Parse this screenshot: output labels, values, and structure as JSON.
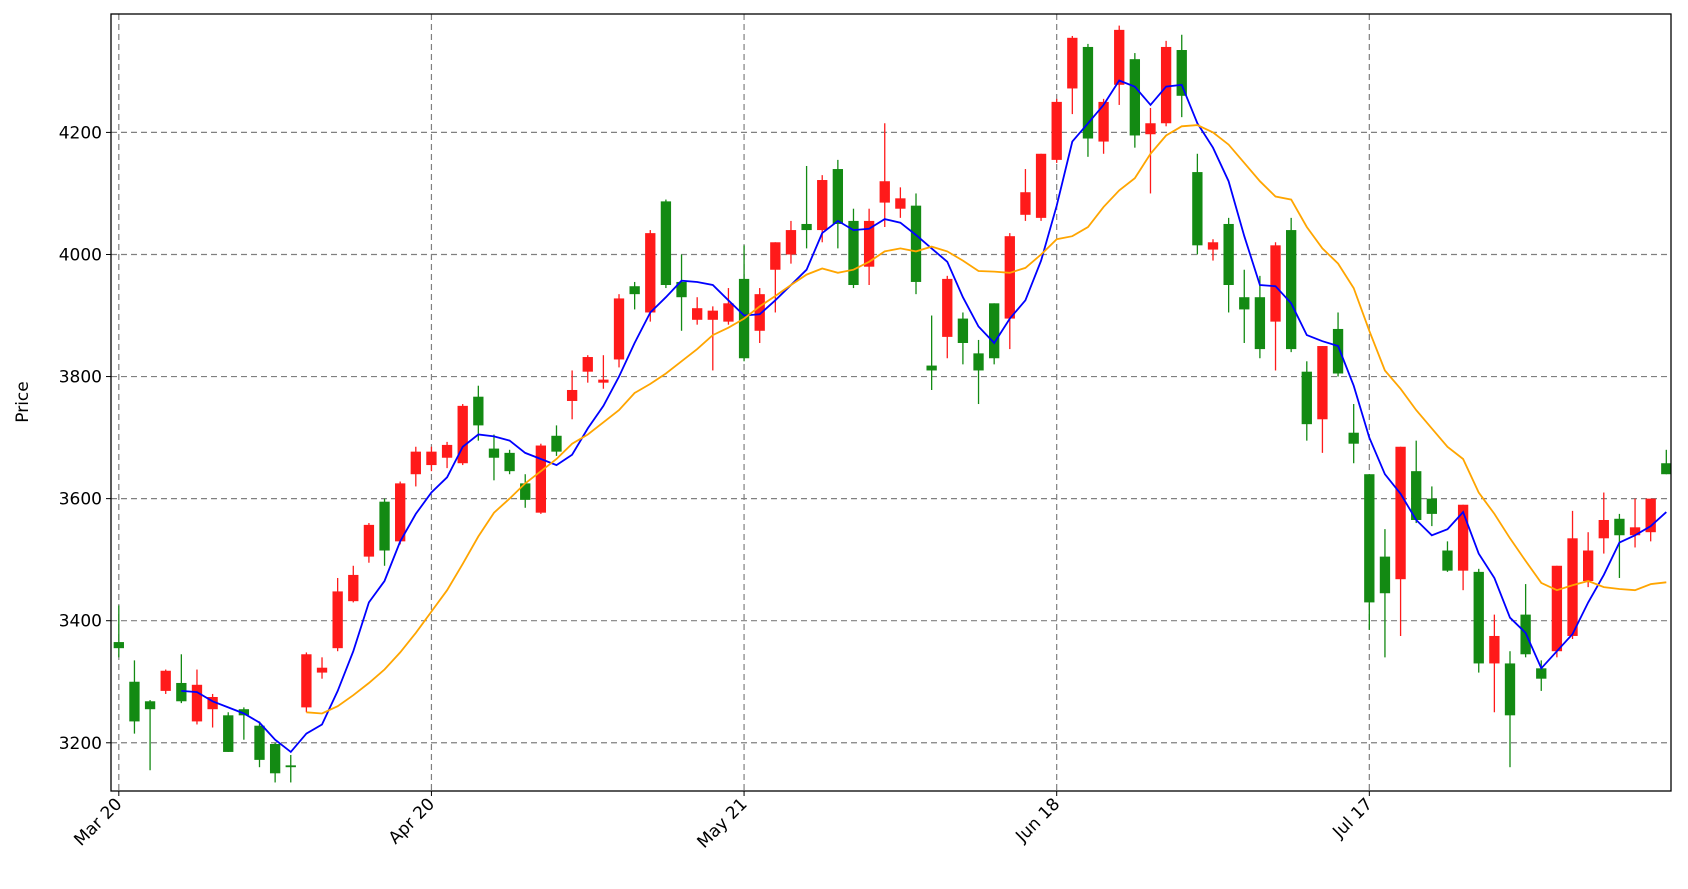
{
  "chart_data": {
    "type": "candlestick",
    "y_label": "Price",
    "categories": [
      "Mar 20",
      null,
      null,
      null,
      null,
      null,
      null,
      null,
      null,
      null,
      null,
      null,
      null,
      null,
      null,
      null,
      null,
      null,
      null,
      null,
      "Apr 20",
      null,
      null,
      null,
      null,
      null,
      null,
      null,
      null,
      null,
      null,
      null,
      null,
      null,
      null,
      null,
      null,
      null,
      null,
      null,
      "May 21",
      null,
      null,
      null,
      null,
      null,
      null,
      null,
      null,
      null,
      null,
      null,
      null,
      null,
      null,
      null,
      null,
      null,
      null,
      null,
      "Jun 18",
      null,
      null,
      null,
      null,
      null,
      null,
      null,
      null,
      null,
      null,
      null,
      null,
      null,
      null,
      null,
      null,
      null,
      null,
      null,
      "Jul 17",
      null,
      null,
      null,
      null,
      null,
      null,
      null,
      null,
      null,
      null,
      null,
      null,
      null,
      null,
      null,
      null,
      null,
      null,
      null
    ],
    "open": [
      3365,
      3300,
      3268,
      3285,
      3298,
      3235,
      3255,
      3245,
      3255,
      3228,
      3198,
      3163,
      3258,
      3315,
      3355,
      3432,
      3505,
      3595,
      3530,
      3640,
      3655,
      3667,
      3658,
      3767,
      3682,
      3675,
      3625,
      3577,
      3703,
      3760,
      3808,
      3790,
      3828,
      3948,
      3905,
      4087,
      3955,
      3893,
      3893,
      3890,
      3960,
      3875,
      3975,
      4000,
      4050,
      4040,
      4140,
      4055,
      3980,
      4085,
      4075,
      4080,
      3818,
      3865,
      3895,
      3838,
      3920,
      3895,
      4065,
      4060,
      4155,
      4272,
      4340,
      4185,
      4278,
      4320,
      4197,
      4215,
      4335,
      4135,
      4008,
      4050,
      3930,
      3930,
      3890,
      4040,
      3808,
      3730,
      3878,
      3708,
      3640,
      3505,
      3468,
      3645,
      3600,
      3515,
      3482,
      3480,
      3330,
      3330,
      3410,
      3322,
      3350,
      3375,
      3465,
      3535,
      3567,
      3540,
      3545,
      3658
    ],
    "high": [
      3425,
      3335,
      3270,
      3320,
      3345,
      3320,
      3280,
      3250,
      3258,
      3235,
      3200,
      3180,
      3348,
      3340,
      3470,
      3490,
      3560,
      3600,
      3628,
      3685,
      3685,
      3693,
      3755,
      3785,
      3705,
      3680,
      3640,
      3690,
      3720,
      3810,
      3835,
      3835,
      3935,
      3955,
      4040,
      4090,
      4000,
      3930,
      3915,
      3945,
      4015,
      3945,
      4020,
      4055,
      4145,
      4130,
      4155,
      4075,
      4075,
      4215,
      4110,
      4100,
      3900,
      3965,
      3905,
      3860,
      3920,
      4035,
      4140,
      4165,
      4255,
      4358,
      4345,
      4255,
      4375,
      4330,
      4240,
      4350,
      4360,
      4165,
      4025,
      4060,
      3975,
      3965,
      4020,
      4060,
      3825,
      3850,
      3905,
      3755,
      3640,
      3550,
      3685,
      3695,
      3620,
      3530,
      3590,
      3485,
      3410,
      3350,
      3460,
      3335,
      3490,
      3580,
      3545,
      3610,
      3575,
      3600,
      3600,
      3680
    ],
    "low": [
      3340,
      3215,
      3155,
      3280,
      3265,
      3230,
      3225,
      3185,
      3205,
      3160,
      3135,
      3135,
      3250,
      3305,
      3350,
      3430,
      3495,
      3490,
      3525,
      3620,
      3645,
      3650,
      3655,
      3695,
      3630,
      3640,
      3585,
      3575,
      3670,
      3730,
      3790,
      3780,
      3815,
      3910,
      3890,
      3945,
      3875,
      3885,
      3810,
      3885,
      3825,
      3855,
      3905,
      3985,
      4010,
      4020,
      4010,
      3945,
      3950,
      4045,
      4060,
      3935,
      3778,
      3830,
      3820,
      3755,
      3820,
      3845,
      4055,
      4055,
      4150,
      4230,
      4160,
      4165,
      4245,
      4175,
      4100,
      4210,
      4225,
      4000,
      3990,
      3905,
      3855,
      3830,
      3810,
      3840,
      3695,
      3675,
      3800,
      3658,
      3385,
      3340,
      3375,
      3560,
      3555,
      3480,
      3450,
      3315,
      3250,
      3160,
      3340,
      3285,
      3340,
      3370,
      3455,
      3510,
      3470,
      3520,
      3530,
      3640
    ],
    "close": [
      3355,
      3235,
      3255,
      3318,
      3268,
      3295,
      3275,
      3185,
      3245,
      3172,
      3150,
      3160,
      3345,
      3323,
      3448,
      3475,
      3557,
      3515,
      3625,
      3677,
      3677,
      3688,
      3752,
      3720,
      3667,
      3645,
      3598,
      3687,
      3677,
      3778,
      3832,
      3795,
      3928,
      3935,
      4035,
      3950,
      3930,
      3912,
      3908,
      3920,
      3830,
      3935,
      4020,
      4040,
      4040,
      4122,
      4050,
      3950,
      4055,
      4120,
      4092,
      3955,
      3810,
      3960,
      3855,
      3810,
      3830,
      4030,
      4102,
      4165,
      4250,
      4355,
      4190,
      4250,
      4368,
      4195,
      4215,
      4340,
      4260,
      4015,
      4020,
      3950,
      3910,
      3845,
      4015,
      3845,
      3722,
      3850,
      3805,
      3690,
      3430,
      3445,
      3685,
      3565,
      3575,
      3482,
      3590,
      3330,
      3375,
      3245,
      3345,
      3305,
      3490,
      3535,
      3515,
      3565,
      3540,
      3553,
      3600,
      3640
    ],
    "up_color": "#ff1a1a",
    "down_color": "#138a13",
    "ma_lines": [
      {
        "color": "#0000ff",
        "values": [
          null,
          null,
          null,
          null,
          3285,
          3283,
          3268,
          3258,
          3248,
          3233,
          3205,
          3185,
          3215,
          3230,
          3285,
          3350,
          3430,
          3465,
          3530,
          3575,
          3610,
          3635,
          3685,
          3705,
          3702,
          3695,
          3675,
          3665,
          3655,
          3672,
          3715,
          3752,
          3800,
          3855,
          3905,
          3930,
          3957,
          3955,
          3950,
          3925,
          3900,
          3902,
          3925,
          3950,
          3975,
          4035,
          4055,
          4040,
          4042,
          4058,
          4052,
          4032,
          4010,
          3988,
          3930,
          3882,
          3855,
          3895,
          3925,
          3990,
          4080,
          4185,
          4215,
          4245,
          4285,
          4275,
          4245,
          4275,
          4278,
          4215,
          4175,
          4120,
          4030,
          3950,
          3948,
          3920,
          3868,
          3858,
          3850,
          3785,
          3700,
          3640,
          3608,
          3565,
          3540,
          3550,
          3578,
          3510,
          3470,
          3405,
          3380,
          3322,
          3350,
          3378,
          3430,
          3475,
          3528,
          3540,
          3555,
          3578
        ]
      },
      {
        "color": "#ffa500",
        "values": [
          null,
          null,
          null,
          null,
          null,
          null,
          null,
          null,
          null,
          null,
          null,
          null,
          3250,
          3248,
          3260,
          3278,
          3298,
          3320,
          3348,
          3380,
          3415,
          3450,
          3493,
          3538,
          3577,
          3600,
          3625,
          3645,
          3665,
          3690,
          3705,
          3725,
          3745,
          3773,
          3788,
          3805,
          3825,
          3845,
          3868,
          3880,
          3895,
          3915,
          3932,
          3950,
          3967,
          3977,
          3970,
          3975,
          3988,
          4005,
          4010,
          4005,
          4013,
          4005,
          3990,
          3973,
          3972,
          3970,
          3978,
          4000,
          4025,
          4030,
          4045,
          4078,
          4105,
          4125,
          4165,
          4195,
          4210,
          4212,
          4200,
          4180,
          4150,
          4120,
          4095,
          4090,
          4045,
          4010,
          3985,
          3945,
          3875,
          3810,
          3780,
          3745,
          3715,
          3685,
          3665,
          3610,
          3575,
          3535,
          3498,
          3462,
          3450,
          3458,
          3465,
          3455,
          3452,
          3450,
          3460,
          3463
        ]
      }
    ],
    "xlim": [
      -0.5,
      99.3
    ],
    "ylim": [
      3121,
      4394
    ],
    "yticks": [
      3200,
      3400,
      3600,
      3800,
      4000,
      4200
    ],
    "grid": true
  }
}
